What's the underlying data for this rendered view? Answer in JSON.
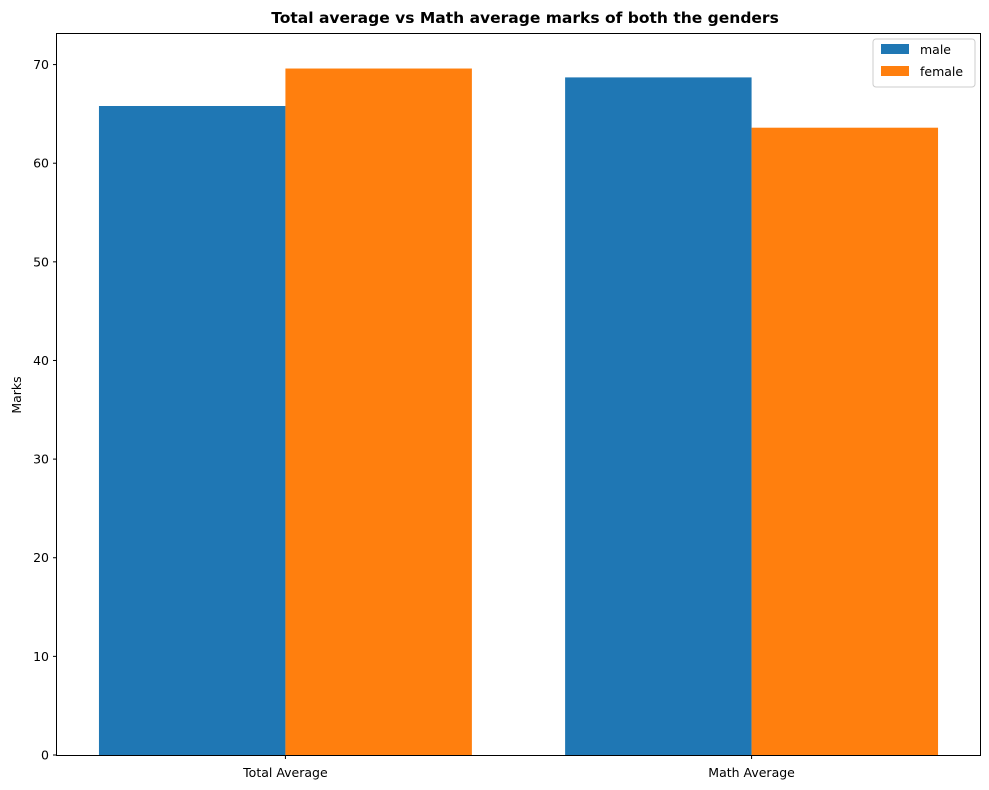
{
  "chart_data": {
    "type": "bar",
    "title": "Total average vs Math average marks of both the genders",
    "xlabel": "",
    "ylabel": "Marks",
    "categories": [
      "Total Average",
      "Math Average"
    ],
    "series": [
      {
        "name": "male",
        "values": [
          65.8,
          68.7
        ],
        "color": "#1f77b4"
      },
      {
        "name": "female",
        "values": [
          69.6,
          63.6
        ],
        "color": "#ff7f0e"
      }
    ],
    "ylim": [
      0,
      73.1
    ],
    "yticks": [
      0,
      10,
      20,
      30,
      40,
      50,
      60,
      70
    ],
    "grid": false,
    "legend_position": "top-right"
  }
}
